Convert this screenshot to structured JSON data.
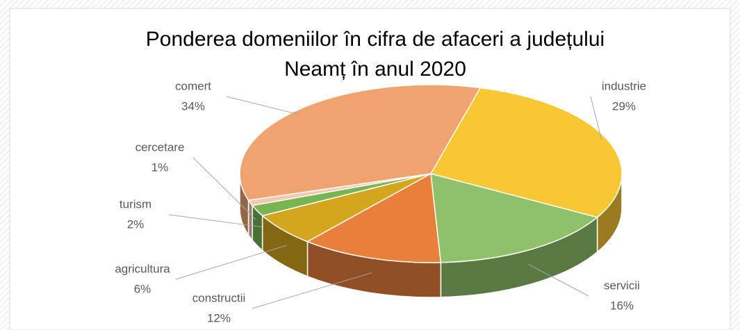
{
  "chart_data": {
    "type": "pie3d",
    "title": "Ponderea domeniilor în cifra de afaceri a județului",
    "subtitle": "Neamț în anul 2020",
    "categories": [
      "industrie",
      "servicii",
      "constructii",
      "agricultura",
      "turism",
      "cercetare",
      "comert"
    ],
    "values": [
      29,
      16,
      12,
      6,
      2,
      1,
      34
    ],
    "value_labels": [
      "29%",
      "16%",
      "12%",
      "6%",
      "2%",
      "1%",
      "34%"
    ],
    "colors": [
      "#f9c733",
      "#8fc16a",
      "#e8803c",
      "#d4a61e",
      "#79b452",
      "#f3c9b0",
      "#efa46f"
    ]
  }
}
